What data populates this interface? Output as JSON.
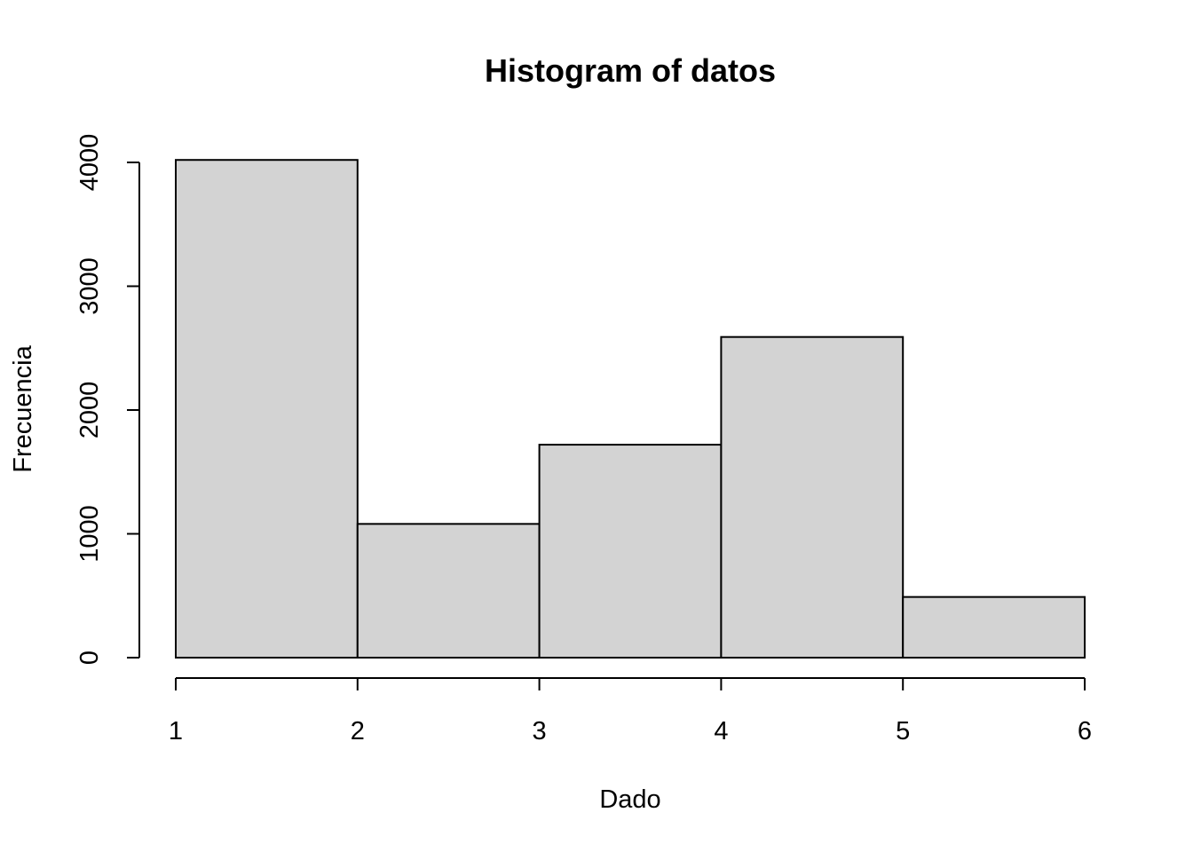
{
  "chart_data": {
    "type": "bar",
    "title": "Histogram of datos",
    "xlabel": "Dado",
    "ylabel": "Frecuencia",
    "bins": [
      {
        "from": 1,
        "to": 2,
        "count": 4020
      },
      {
        "from": 2,
        "to": 3,
        "count": 1080
      },
      {
        "from": 3,
        "to": 4,
        "count": 1720
      },
      {
        "from": 4,
        "to": 5,
        "count": 2590
      },
      {
        "from": 5,
        "to": 6,
        "count": 490
      }
    ],
    "x_ticks": [
      1,
      2,
      3,
      4,
      5,
      6
    ],
    "y_ticks": [
      0,
      1000,
      2000,
      3000,
      4000
    ],
    "xlim": [
      1,
      6
    ],
    "ylim": [
      0,
      4000
    ],
    "bar_color": "#d3d3d3",
    "grid": false,
    "legend": false
  }
}
